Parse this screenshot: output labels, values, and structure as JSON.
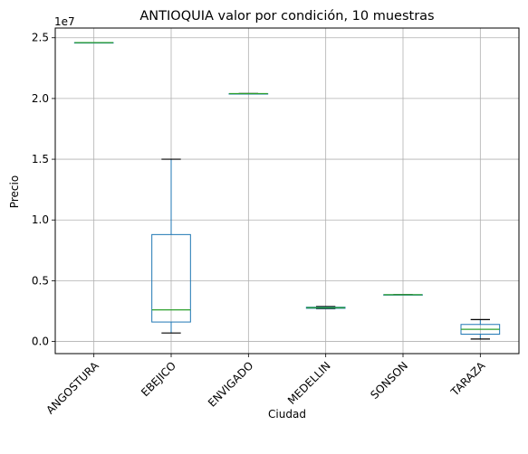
{
  "chart_data": {
    "type": "box",
    "title": "ANTIOQUIA valor por condición, 10 muestras",
    "xlabel": "Ciudad",
    "ylabel": "Precio",
    "y_offset_label": "1e7",
    "y_scale": 10000000,
    "ylim": [
      -1000000,
      25800000
    ],
    "y_ticks": [
      0.0,
      0.5,
      1.0,
      1.5,
      2.0,
      2.5
    ],
    "y_tick_labels": [
      "0.0",
      "0.5",
      "1.0",
      "1.5",
      "2.0",
      "2.5"
    ],
    "grid": true,
    "categories": [
      "ANGOSTURA",
      "EBEJICO",
      "ENVIGADO",
      "MEDELLIN",
      "SONSON",
      "TARAZA"
    ],
    "boxes": [
      {
        "category": "ANGOSTURA",
        "whisker_low": 24600000,
        "q1": 24600000,
        "median": 24600000,
        "q3": 24600000,
        "whisker_high": 24600000
      },
      {
        "category": "EBEJICO",
        "whisker_low": 700000,
        "q1": 1600000,
        "median": 2600000,
        "q3": 8800000,
        "whisker_high": 15000000
      },
      {
        "category": "ENVIGADO",
        "whisker_low": 20400000,
        "q1": 20400000,
        "median": 20400000,
        "q3": 20400000,
        "whisker_high": 20400000
      },
      {
        "category": "MEDELLIN",
        "whisker_low": 2700000,
        "q1": 2730000,
        "median": 2780000,
        "q3": 2820000,
        "whisker_high": 2870000
      },
      {
        "category": "SONSON",
        "whisker_low": 3850000,
        "q1": 3850000,
        "median": 3850000,
        "q3": 3850000,
        "whisker_high": 3850000
      },
      {
        "category": "TARAZA",
        "whisker_low": 200000,
        "q1": 600000,
        "median": 1000000,
        "q3": 1400000,
        "whisker_high": 1800000
      }
    ],
    "colors": {
      "box": "#1f77b4",
      "median": "#2ca02c",
      "whisker": "#000000",
      "grid": "#b0b0b0"
    }
  }
}
